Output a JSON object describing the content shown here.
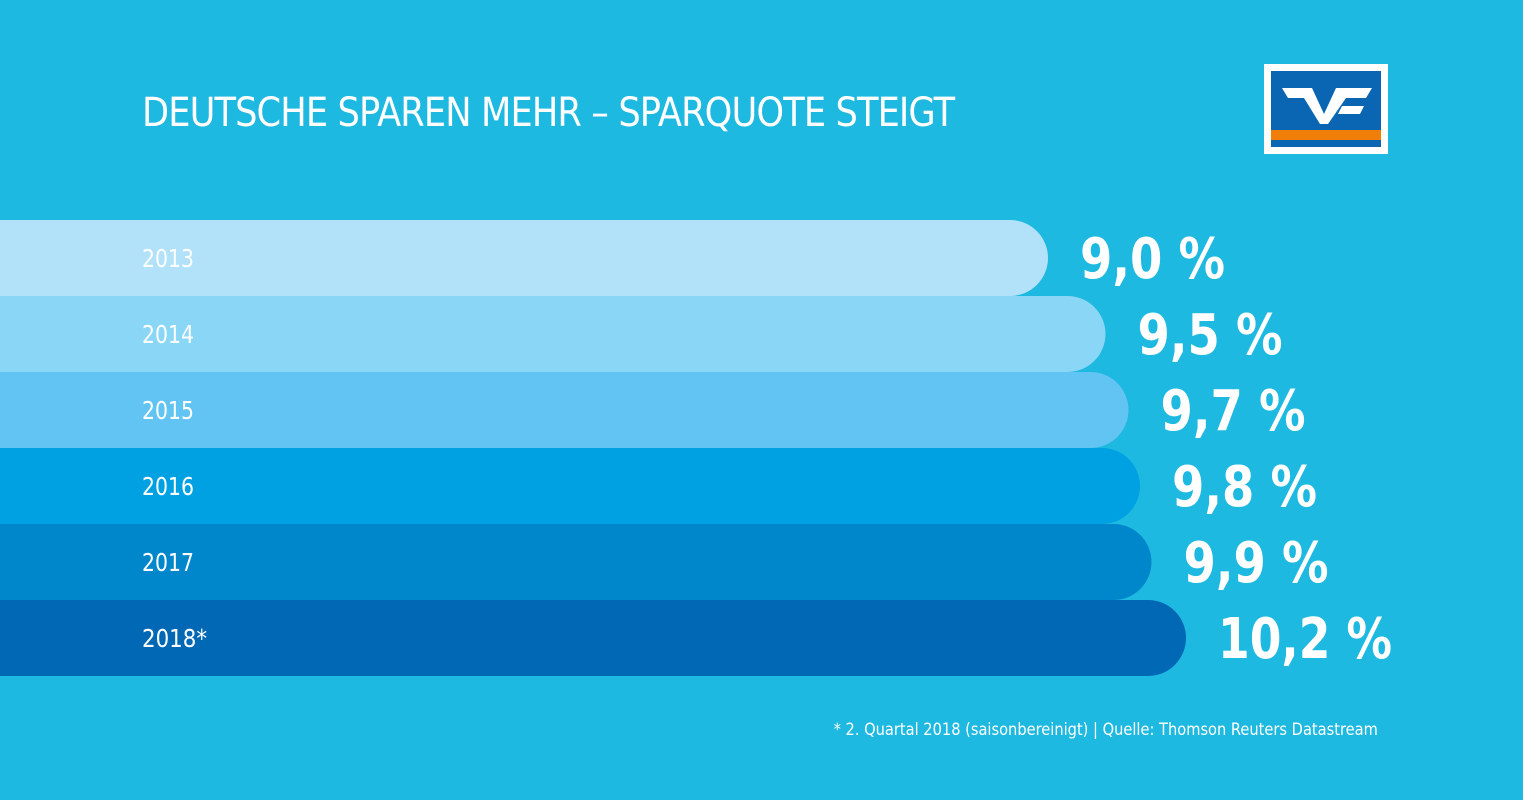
{
  "header": {
    "title": "DEUTSCHE SPAREN MEHR – SPARQUOTE STEIGT"
  },
  "logo": {
    "name": "volksbank-raiffeisenbank-logo",
    "colors": {
      "frame": "#ffffff",
      "blue": "#0a65b3",
      "orange": "#f07f0a"
    }
  },
  "chart_data": {
    "type": "bar",
    "orientation": "horizontal",
    "title": "DEUTSCHE SPAREN MEHR – SPARQUOTE STEIGT",
    "categories": [
      "2013",
      "2014",
      "2015",
      "2016",
      "2017",
      "2018*"
    ],
    "values": [
      9.0,
      9.5,
      9.7,
      9.8,
      9.9,
      10.2
    ],
    "value_labels": [
      "9,0 %",
      "9,5 %",
      "9,7 %",
      "9,8 %",
      "9,9 %",
      "10,2 %"
    ],
    "unit": "%",
    "bar_colors": [
      "#b2e2f9",
      "#8ad6f6",
      "#61c4f2",
      "#00a1e3",
      "#0086cb",
      "#0068b4"
    ],
    "grid": false,
    "legend": "none"
  },
  "footnote": "* 2. Quartal 2018 (saisonbereinigt) | Quelle: Thomson Reuters Datastream",
  "colors": {
    "background": "#1eb9e0",
    "text": "#ffffff"
  }
}
